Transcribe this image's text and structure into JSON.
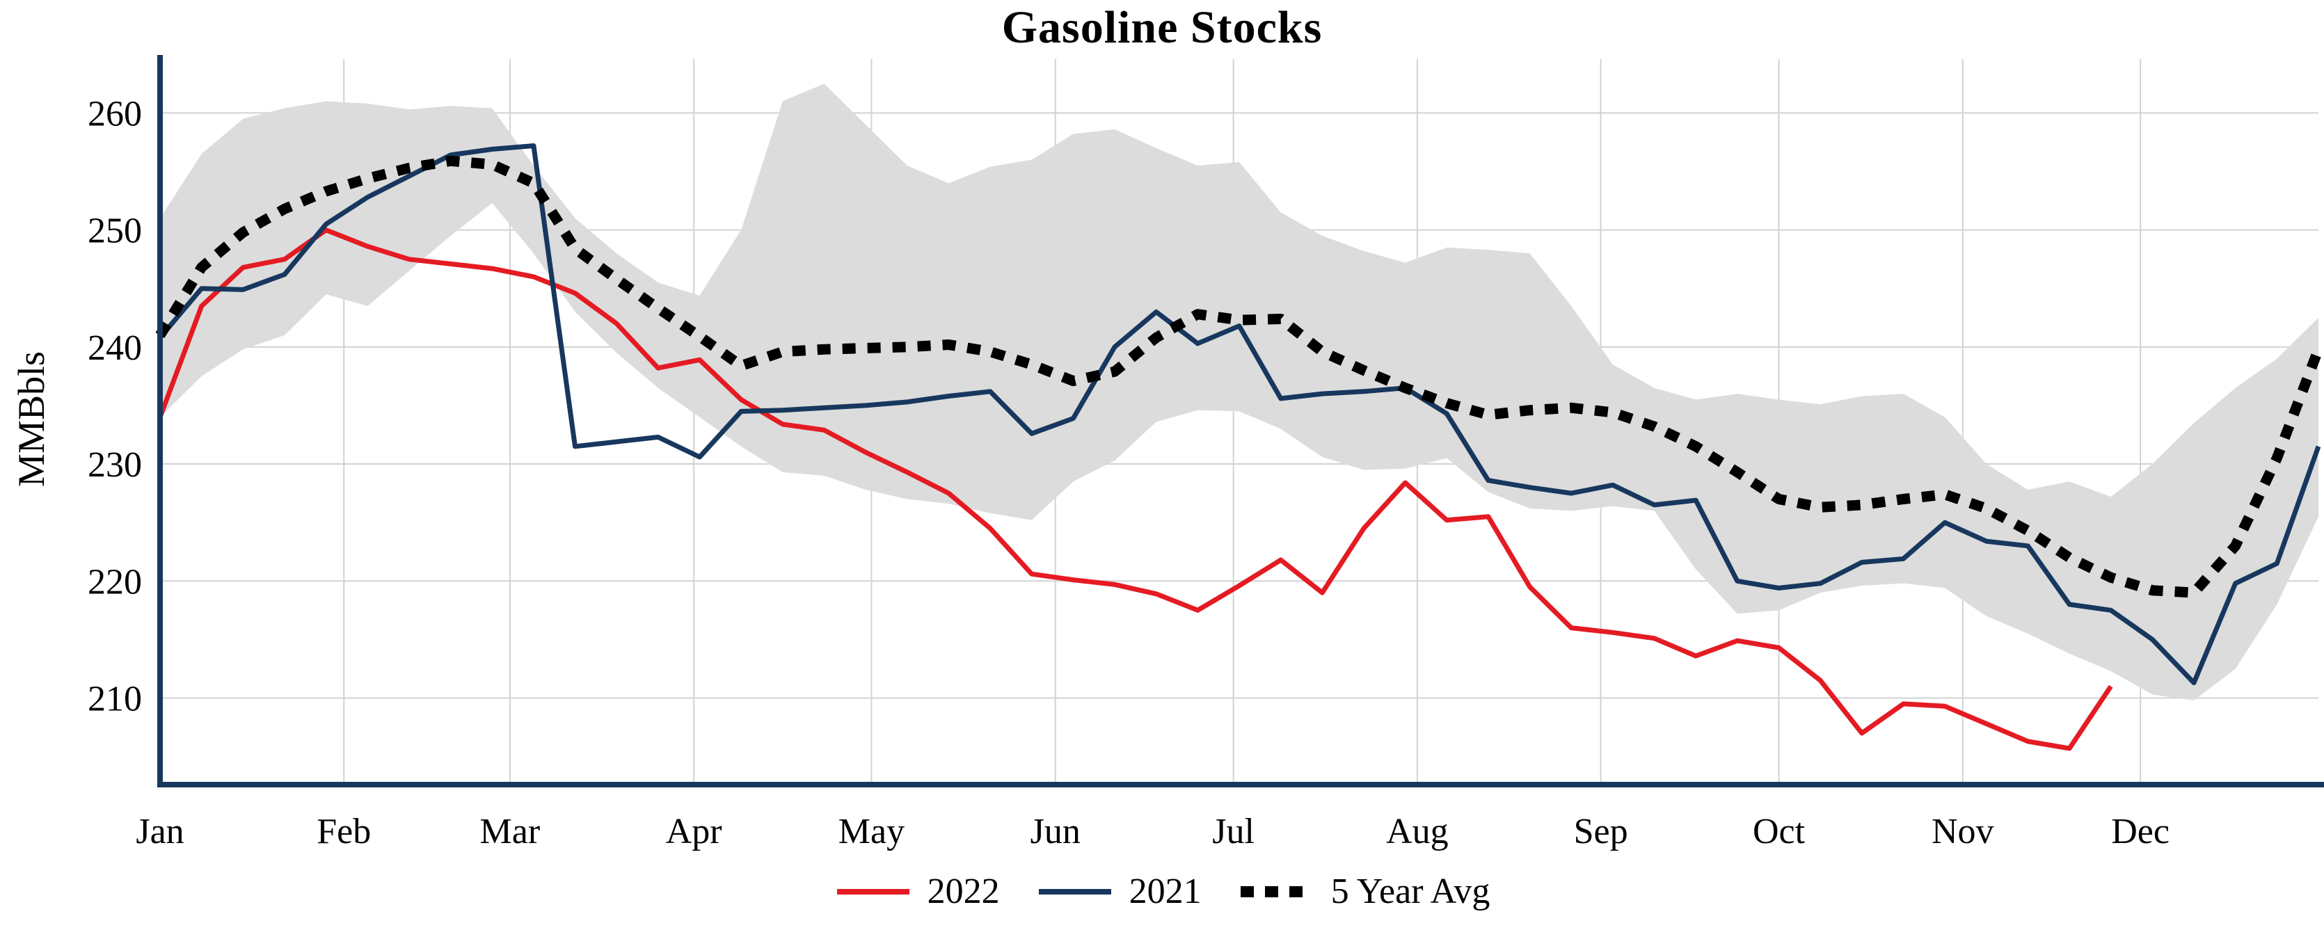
{
  "chart_data": {
    "type": "line",
    "title": "Gasoline Stocks",
    "ylabel": "MMBbls",
    "xlabel": "",
    "x_unit": "week-of-year",
    "xlim": [
      0,
      52
    ],
    "ylim": [
      202.6,
      264.6
    ],
    "yticks": [
      210,
      220,
      230,
      240,
      250,
      260
    ],
    "xticks": [
      {
        "label": "Jan",
        "week": 0
      },
      {
        "label": "Feb",
        "week": 4.43
      },
      {
        "label": "Mar",
        "week": 8.43
      },
      {
        "label": "Apr",
        "week": 12.86
      },
      {
        "label": "May",
        "week": 17.14
      },
      {
        "label": "Jun",
        "week": 21.57
      },
      {
        "label": "Jul",
        "week": 25.86
      },
      {
        "label": "Aug",
        "week": 30.29
      },
      {
        "label": "Sep",
        "week": 34.71
      },
      {
        "label": "Oct",
        "week": 39.0
      },
      {
        "label": "Nov",
        "week": 43.43
      },
      {
        "label": "Dec",
        "week": 47.71
      }
    ],
    "grid": true,
    "legend_position": "bottom",
    "colors": {
      "grid": "#d2d2d2",
      "axis": "#17375e",
      "background": "#ffffff",
      "text": "#000000"
    },
    "band": {
      "name": "5 year range",
      "fill": "#dcdcdc",
      "upper": [
        251.0,
        256.5,
        259.5,
        260.4,
        261.0,
        260.8,
        260.3,
        260.6,
        260.4,
        255.5,
        251.0,
        248.0,
        245.5,
        244.4,
        250.0,
        261.0,
        262.5,
        259.0,
        255.5,
        254.0,
        255.4,
        256.0,
        258.2,
        258.6,
        257.0,
        255.5,
        255.8,
        251.5,
        249.5,
        248.2,
        247.2,
        248.5,
        248.3,
        248.0,
        243.5,
        238.5,
        236.5,
        235.5,
        236.0,
        235.5,
        235.1,
        235.8,
        236.0,
        234.0,
        230.0,
        227.8,
        228.5,
        227.2,
        230.0,
        233.5,
        236.5,
        239.0,
        242.5
      ],
      "lower": [
        234.0,
        237.5,
        239.8,
        241.0,
        244.5,
        243.5,
        246.5,
        249.5,
        252.3,
        248.0,
        243.0,
        239.5,
        236.5,
        234.0,
        231.5,
        229.3,
        229.0,
        227.8,
        227.0,
        226.6,
        225.8,
        225.2,
        228.5,
        230.3,
        233.6,
        234.6,
        234.5,
        233.0,
        230.6,
        229.5,
        229.6,
        230.5,
        227.6,
        226.2,
        226.0,
        226.4,
        226.0,
        221.0,
        217.2,
        217.5,
        219.0,
        219.6,
        219.8,
        219.4,
        217.0,
        215.5,
        213.8,
        212.3,
        210.3,
        209.8,
        212.5,
        218.0,
        225.5
      ]
    },
    "series": [
      {
        "name": "2022",
        "color": "#e41b23",
        "style": "solid",
        "values": [
          234.0,
          243.5,
          246.8,
          247.5,
          250.0,
          248.6,
          247.5,
          247.1,
          246.7,
          246.0,
          244.6,
          242.0,
          238.2,
          238.9,
          235.5,
          233.4,
          232.9,
          231.0,
          229.3,
          227.5,
          224.5,
          220.6,
          220.1,
          219.7,
          218.9,
          217.5,
          219.6,
          221.8,
          219.0,
          224.5,
          228.4,
          225.2,
          225.5,
          219.5,
          216.0,
          215.6,
          215.1,
          213.6,
          214.9,
          214.3,
          211.5,
          207.0,
          209.5,
          209.3,
          207.8,
          206.3,
          205.7,
          211.0
        ]
      },
      {
        "name": "2021",
        "color": "#17375e",
        "style": "solid",
        "values": [
          240.8,
          245.0,
          244.9,
          246.2,
          250.5,
          252.8,
          254.6,
          256.4,
          256.9,
          257.2,
          231.5,
          231.9,
          232.3,
          230.6,
          234.5,
          234.6,
          234.8,
          235.0,
          235.3,
          235.8,
          236.2,
          232.6,
          233.9,
          240.0,
          243.0,
          240.3,
          241.8,
          235.6,
          236.0,
          236.2,
          236.5,
          234.3,
          228.6,
          228.0,
          227.5,
          228.2,
          226.5,
          226.9,
          220.0,
          219.4,
          219.8,
          221.6,
          221.9,
          225.0,
          223.4,
          223.0,
          218.0,
          217.5,
          215.0,
          211.3,
          219.8,
          221.5,
          231.5
        ]
      },
      {
        "name": "5 Year Avg",
        "color": "#000000",
        "style": "dotted",
        "values": [
          241.0,
          246.8,
          249.8,
          251.8,
          253.3,
          254.4,
          255.3,
          255.9,
          255.6,
          254.0,
          248.4,
          245.8,
          243.3,
          240.9,
          238.4,
          239.6,
          239.8,
          239.9,
          240.0,
          240.2,
          239.6,
          238.5,
          237.1,
          237.9,
          240.8,
          242.8,
          242.3,
          242.4,
          239.6,
          238.0,
          236.5,
          235.2,
          234.2,
          234.6,
          234.8,
          234.4,
          233.2,
          231.5,
          229.3,
          227.0,
          226.3,
          226.5,
          227.0,
          227.4,
          226.2,
          224.3,
          222.0,
          220.3,
          219.2,
          219.0,
          223.0,
          230.5,
          239.8
        ]
      }
    ]
  }
}
